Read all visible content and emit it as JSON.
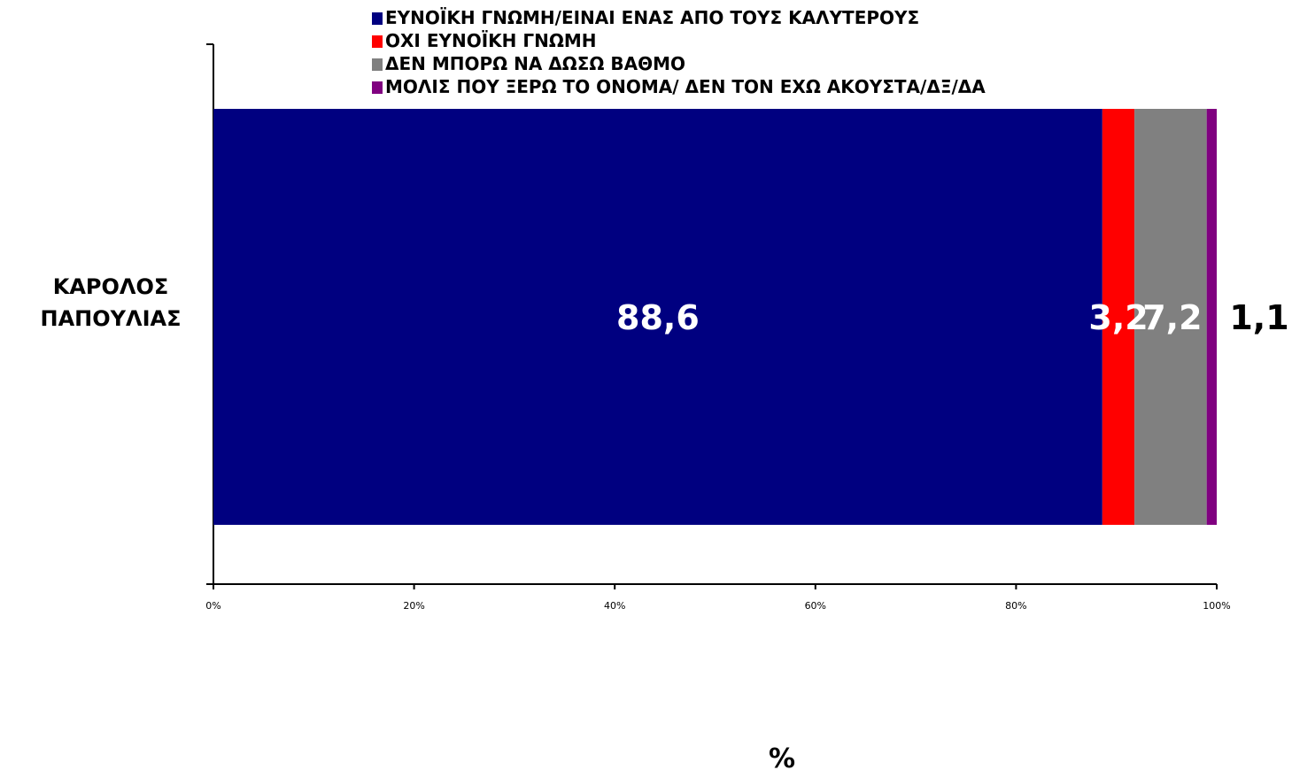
{
  "chart_data": {
    "type": "bar",
    "orientation": "horizontal",
    "stacked": "percent",
    "categories": [
      [
        "ΚΑΡΟΛΟΣ",
        "ΠΑΠΟΥΛΙΑΣ"
      ]
    ],
    "series": [
      {
        "name": "ΕΥΝΟΪΚΗ ΓΝΩΜΗ/ΕΙΝΑΙ ΕΝΑΣ ΑΠΟ ΤΟΥΣ ΚΑΛΥΤΕΡΟΥΣ",
        "values": [
          88.6
        ],
        "labels": [
          "88,6"
        ],
        "color": "#000080",
        "label_color": "#ffffff"
      },
      {
        "name": "ΟΧΙ ΕΥΝΟΪΚΗ ΓΝΩΜΗ",
        "values": [
          3.2
        ],
        "labels": [
          "3,2"
        ],
        "color": "#ff0000",
        "label_color": "#ffffff"
      },
      {
        "name": "ΔΕΝ ΜΠΟΡΩ ΝΑ ΔΩΣΩ ΒΑΘΜΟ",
        "values": [
          7.2
        ],
        "labels": [
          "7,2"
        ],
        "color": "#808080",
        "label_color": "#ffffff"
      },
      {
        "name": "ΜΟΛΙΣ ΠΟΥ ΞΕΡΩ ΤΟ ΟΝΟΜΑ/ ΔΕΝ ΤΟΝ ΕΧΩ ΑΚΟΥΣΤΑ/ΔΞ/ΔΑ",
        "values": [
          1.1
        ],
        "labels": [
          "1,1"
        ],
        "color": "#800080",
        "label_color": "#000000"
      }
    ],
    "xlim": [
      0,
      100
    ],
    "x_ticks": [
      "0%",
      "20%",
      "40%",
      "60%",
      "80%",
      "100%"
    ],
    "xlabel": "%",
    "legend": "top",
    "grid": false
  }
}
